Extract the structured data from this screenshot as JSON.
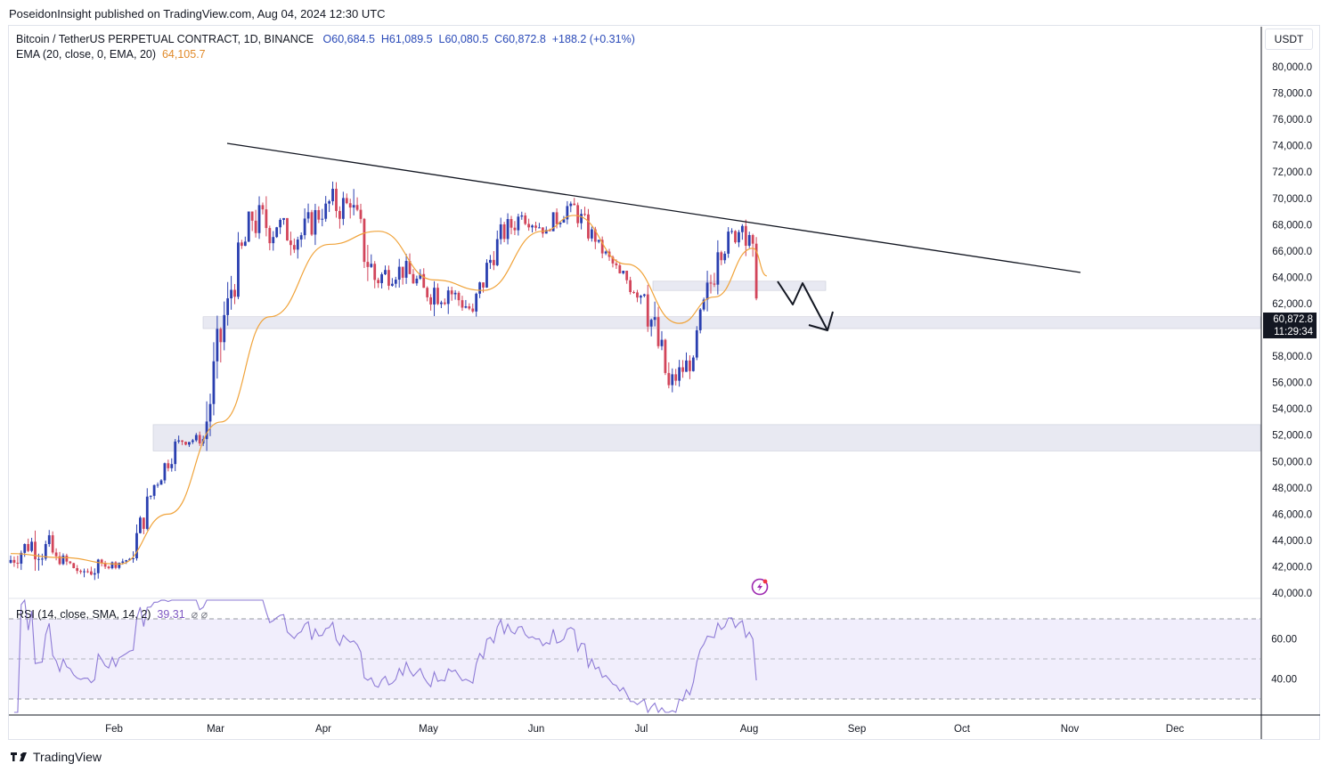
{
  "header": {
    "published": "PoseidonInsight published on TradingView.com, Aug 04, 2024 12:30 UTC"
  },
  "legend": {
    "symbol": "Bitcoin / TetherUS PERPETUAL CONTRACT, 1D, BINANCE",
    "open": "O60,684.5",
    "high": "H61,089.5",
    "low": "L60,080.5",
    "close": "C60,872.8",
    "change": "+188.2 (+0.31%)",
    "ema_label": "EMA (20, close, 0, EMA, 20)",
    "ema_value": "64,105.7"
  },
  "rsi_legend": {
    "label": "RSI (14, close, SMA, 14, 2)",
    "value": "39.31",
    "extra": "⌀ ⌀"
  },
  "currency": "USDT",
  "price_tag": {
    "price": "60,872.8",
    "countdown": "11:29:34"
  },
  "footer": {
    "brand": "TradingView"
  },
  "colors": {
    "up": "#2a3fb0",
    "down": "#d2455a",
    "ema": "#f0a33a",
    "rsi": "#8e7bd6",
    "zone": "#e8e9f2"
  },
  "chart_data": {
    "type": "candlestick",
    "y_axis_ticks": [
      "80,000.0",
      "78,000.0",
      "76,000.0",
      "74,000.0",
      "72,000.0",
      "70,000.0",
      "68,000.0",
      "66,000.0",
      "64,000.0",
      "62,000.0",
      "60,000.0",
      "58,000.0",
      "56,000.0",
      "54,000.0",
      "52,000.0",
      "50,000.0",
      "48,000.0",
      "46,000.0",
      "44,000.0",
      "42,000.0",
      "40,000.0"
    ],
    "ylim": [
      39900,
      81000
    ],
    "x_axis_labels": [
      "Feb",
      "Mar",
      "Apr",
      "May",
      "Jun",
      "Jul",
      "Aug",
      "Sep",
      "Oct",
      "Nov",
      "Dec"
    ],
    "candles_weekly_approx": [
      {
        "week": "Jan 1",
        "open": 42300,
        "high": 45800,
        "low": 40700,
        "close": 43900
      },
      {
        "week": "Jan 8",
        "open": 43900,
        "high": 49000,
        "low": 41500,
        "close": 42800
      },
      {
        "week": "Jan 15",
        "open": 42800,
        "high": 43400,
        "low": 40500,
        "close": 41600
      },
      {
        "week": "Jan 22",
        "open": 41600,
        "high": 42600,
        "low": 38600,
        "close": 42000
      },
      {
        "week": "Jan 29",
        "open": 42000,
        "high": 43800,
        "low": 41800,
        "close": 42600
      },
      {
        "week": "Feb 5",
        "open": 42600,
        "high": 48600,
        "low": 42300,
        "close": 48200
      },
      {
        "week": "Feb 12",
        "open": 48200,
        "high": 52800,
        "low": 48000,
        "close": 51600
      },
      {
        "week": "Feb 19",
        "open": 51600,
        "high": 52900,
        "low": 50500,
        "close": 51700
      },
      {
        "week": "Feb 26",
        "open": 51700,
        "high": 64000,
        "low": 50800,
        "close": 62400
      },
      {
        "week": "Mar 4",
        "open": 62400,
        "high": 69000,
        "low": 59000,
        "close": 68300
      },
      {
        "week": "Mar 11",
        "open": 68300,
        "high": 73800,
        "low": 64500,
        "close": 67800
      },
      {
        "week": "Mar 18",
        "open": 67800,
        "high": 68500,
        "low": 60800,
        "close": 67200
      },
      {
        "week": "Mar 25",
        "open": 67200,
        "high": 71600,
        "low": 64800,
        "close": 69600
      },
      {
        "week": "Apr 1",
        "open": 69600,
        "high": 72700,
        "low": 65200,
        "close": 69300
      },
      {
        "week": "Apr 8",
        "open": 69300,
        "high": 71100,
        "low": 60100,
        "close": 63800
      },
      {
        "week": "Apr 15",
        "open": 63800,
        "high": 65400,
        "low": 59600,
        "close": 64800
      },
      {
        "week": "Apr 22",
        "open": 64800,
        "high": 67200,
        "low": 62000,
        "close": 63200
      },
      {
        "week": "Apr 29",
        "open": 63200,
        "high": 64300,
        "low": 56500,
        "close": 63000
      },
      {
        "week": "May 6",
        "open": 63000,
        "high": 64800,
        "low": 60200,
        "close": 61400
      },
      {
        "week": "May 13",
        "open": 61400,
        "high": 67700,
        "low": 60600,
        "close": 66900
      },
      {
        "week": "May 20",
        "open": 66900,
        "high": 71800,
        "low": 66500,
        "close": 68700
      },
      {
        "week": "May 27",
        "open": 68700,
        "high": 70300,
        "low": 66900,
        "close": 67600
      },
      {
        "week": "Jun 3",
        "open": 67600,
        "high": 71900,
        "low": 67500,
        "close": 69600
      },
      {
        "week": "Jun 10",
        "open": 69600,
        "high": 70200,
        "low": 65100,
        "close": 66700
      },
      {
        "week": "Jun 17",
        "open": 66700,
        "high": 67100,
        "low": 64000,
        "close": 64300
      },
      {
        "week": "Jun 24",
        "open": 64300,
        "high": 64500,
        "low": 58500,
        "close": 62700
      },
      {
        "week": "Jul 1",
        "open": 62700,
        "high": 63800,
        "low": 53500,
        "close": 55800
      },
      {
        "week": "Jul 8",
        "open": 55800,
        "high": 59500,
        "low": 54300,
        "close": 57900
      },
      {
        "week": "Jul 15",
        "open": 57900,
        "high": 67000,
        "low": 57700,
        "close": 65900
      },
      {
        "week": "Jul 22",
        "open": 65900,
        "high": 68500,
        "low": 63400,
        "close": 67900
      },
      {
        "week": "Jul 29",
        "open": 67900,
        "high": 70000,
        "low": 60000,
        "close": 60900
      }
    ],
    "ema20_approx": [
      {
        "date": "Jan 1",
        "value": 43000
      },
      {
        "date": "Jan 15",
        "value": 42700
      },
      {
        "date": "Feb 1",
        "value": 42200
      },
      {
        "date": "Feb 15",
        "value": 46000
      },
      {
        "date": "Mar 1",
        "value": 53000
      },
      {
        "date": "Mar 15",
        "value": 61000
      },
      {
        "date": "Apr 1",
        "value": 66500
      },
      {
        "date": "Apr 15",
        "value": 67500
      },
      {
        "date": "May 1",
        "value": 63800
      },
      {
        "date": "May 15",
        "value": 63000
      },
      {
        "date": "Jun 1",
        "value": 67500
      },
      {
        "date": "Jun 10",
        "value": 68700
      },
      {
        "date": "Jun 25",
        "value": 65000
      },
      {
        "date": "Jul 10",
        "value": 60500
      },
      {
        "date": "Jul 20",
        "value": 62500
      },
      {
        "date": "Jul 31",
        "value": 66200
      },
      {
        "date": "Aug 4",
        "value": 64105.7
      }
    ],
    "rsi": {
      "ticks": [
        "60.00",
        "40.00"
      ],
      "bands": [
        70,
        50,
        30
      ],
      "last": 39.31
    }
  }
}
